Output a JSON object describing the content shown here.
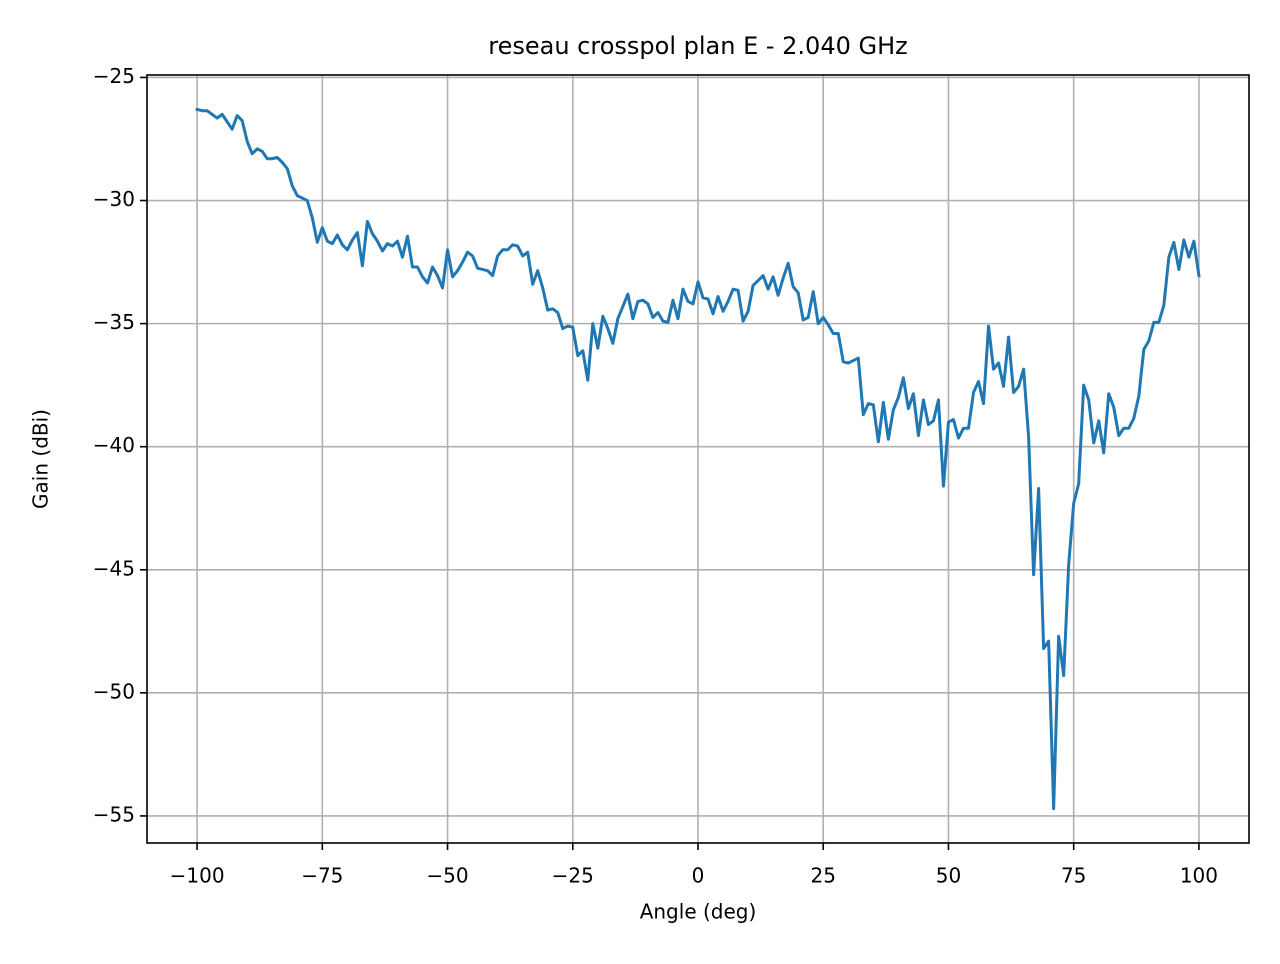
{
  "chart_data": {
    "type": "line",
    "title": "reseau crosspol plan E - 2.040 GHz",
    "x_label": "Angle (deg)",
    "y_label": "Gain (dBi)",
    "color": "#1f77b4",
    "grid": true,
    "xlim": [
      -110,
      110
    ],
    "ylim": [
      -56.1,
      -24.9
    ],
    "xticks": [
      {
        "value": -100,
        "label": "−100"
      },
      {
        "value": -75,
        "label": "−75"
      },
      {
        "value": -50,
        "label": "−50"
      },
      {
        "value": -25,
        "label": "−25"
      },
      0,
      25,
      50,
      75,
      100
    ],
    "yticks": [
      {
        "value": -55,
        "label": "−55"
      },
      {
        "value": -50,
        "label": "−50"
      },
      {
        "value": -45,
        "label": "−45"
      },
      {
        "value": -40,
        "label": "−40"
      },
      {
        "value": -35,
        "label": "−35"
      },
      {
        "value": -30,
        "label": "−30"
      },
      {
        "value": -25,
        "label": "−25"
      }
    ],
    "x": [
      -100,
      -99,
      -98,
      -97,
      -96,
      -95,
      -94,
      -93,
      -92,
      -91,
      -90,
      -89,
      -88,
      -87,
      -86,
      -85,
      -84,
      -83,
      -82,
      -81,
      -80,
      -79,
      -78,
      -77,
      -76,
      -75,
      -74,
      -73,
      -72,
      -71,
      -70,
      -69,
      -68,
      -67,
      -66,
      -65,
      -64,
      -63,
      -62,
      -61,
      -60,
      -59,
      -58,
      -57,
      -56,
      -55,
      -54,
      -53,
      -52,
      -51,
      -50,
      -49,
      -48,
      -47,
      -46,
      -45,
      -44,
      -43,
      -42,
      -41,
      -40,
      -39,
      -38,
      -37,
      -36,
      -35,
      -34,
      -33,
      -32,
      -31,
      -30,
      -29,
      -28,
      -27,
      -26,
      -25,
      -24,
      -23,
      -22,
      -21,
      -20,
      -19,
      -18,
      -17,
      -16,
      -15,
      -14,
      -13,
      -12,
      -11,
      -10,
      -9,
      -8,
      -7,
      -6,
      -5,
      -4,
      -3,
      -2,
      -1,
      0,
      1,
      2,
      3,
      4,
      5,
      6,
      7,
      8,
      9,
      10,
      11,
      12,
      13,
      14,
      15,
      16,
      17,
      18,
      19,
      20,
      21,
      22,
      23,
      24,
      25,
      26,
      27,
      28,
      29,
      30,
      31,
      32,
      33,
      34,
      35,
      36,
      37,
      38,
      39,
      40,
      41,
      42,
      43,
      44,
      45,
      46,
      47,
      48,
      49,
      50,
      51,
      52,
      53,
      54,
      55,
      56,
      57,
      58,
      59,
      60,
      61,
      62,
      63,
      64,
      65,
      66,
      67,
      68,
      69,
      70,
      71,
      72,
      73,
      74,
      75,
      76,
      77,
      78,
      79,
      80,
      81,
      82,
      83,
      84,
      85,
      86,
      87,
      88,
      89,
      90,
      91,
      92,
      93,
      94,
      95,
      96,
      97,
      98,
      99,
      100
    ],
    "values": [
      -26.3,
      -26.35,
      -26.35,
      -26.5,
      -26.65,
      -26.5,
      -26.8,
      -27.1,
      -26.55,
      -26.75,
      -27.6,
      -28.1,
      -27.9,
      -28.0,
      -28.3,
      -28.3,
      -28.25,
      -28.45,
      -28.7,
      -29.4,
      -29.8,
      -29.9,
      -30.0,
      -30.7,
      -31.7,
      -31.1,
      -31.65,
      -31.75,
      -31.4,
      -31.8,
      -32.0,
      -31.6,
      -31.3,
      -32.65,
      -30.85,
      -31.35,
      -31.65,
      -32.05,
      -31.75,
      -31.85,
      -31.65,
      -32.3,
      -31.45,
      -32.7,
      -32.7,
      -33.1,
      -33.35,
      -32.7,
      -33.05,
      -33.55,
      -32.0,
      -33.1,
      -32.85,
      -32.5,
      -32.1,
      -32.25,
      -32.75,
      -32.8,
      -32.85,
      -33.05,
      -32.25,
      -32.0,
      -32.0,
      -31.8,
      -31.85,
      -32.25,
      -32.1,
      -33.4,
      -32.85,
      -33.55,
      -34.45,
      -34.4,
      -34.55,
      -35.2,
      -35.1,
      -35.15,
      -36.3,
      -36.1,
      -37.3,
      -35.0,
      -36.0,
      -34.7,
      -35.2,
      -35.8,
      -34.8,
      -34.3,
      -33.8,
      -34.8,
      -34.1,
      -34.05,
      -34.2,
      -34.75,
      -34.55,
      -34.9,
      -34.95,
      -34.05,
      -34.8,
      -33.6,
      -34.1,
      -34.2,
      -33.3,
      -33.95,
      -34.0,
      -34.6,
      -33.9,
      -34.5,
      -34.1,
      -33.6,
      -33.65,
      -34.9,
      -34.5,
      -33.45,
      -33.25,
      -33.05,
      -33.6,
      -33.1,
      -33.85,
      -33.15,
      -32.55,
      -33.5,
      -33.75,
      -34.85,
      -34.75,
      -33.7,
      -35.0,
      -34.75,
      -35.05,
      -35.4,
      -35.4,
      -36.55,
      -36.6,
      -36.5,
      -36.4,
      -38.7,
      -38.25,
      -38.3,
      -39.8,
      -38.2,
      -39.7,
      -38.5,
      -38.0,
      -37.2,
      -38.45,
      -37.85,
      -39.55,
      -38.1,
      -39.1,
      -38.95,
      -38.1,
      -41.6,
      -39.0,
      -38.9,
      -39.65,
      -39.25,
      -39.25,
      -37.8,
      -37.35,
      -38.25,
      -35.1,
      -36.85,
      -36.6,
      -37.55,
      -35.55,
      -37.8,
      -37.55,
      -36.85,
      -39.6,
      -45.2,
      -41.7,
      -48.2,
      -47.9,
      -54.7,
      -47.7,
      -49.3,
      -44.8,
      -42.3,
      -41.5,
      -37.5,
      -38.1,
      -39.85,
      -38.95,
      -40.25,
      -37.85,
      -38.4,
      -39.55,
      -39.25,
      -39.25,
      -38.85,
      -37.95,
      -36.05,
      -35.7,
      -34.95,
      -34.95,
      -34.25,
      -32.3,
      -31.7,
      -32.8,
      -31.6,
      -32.3,
      -31.65,
      -33.05
    ]
  }
}
